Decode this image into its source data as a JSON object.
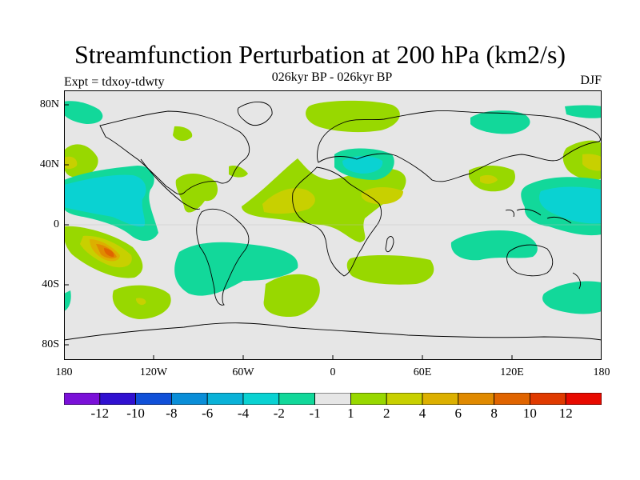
{
  "title": "Streamfunction Perturbation at 200 hPa (km2/s)",
  "subtitle": "026kyr BP - 026kyr BP",
  "experiment": "Expt = tdxoy-tdwty",
  "season": "DJF",
  "axes": {
    "y_labels": [
      "80N",
      "40N",
      "0",
      "40S",
      "80S"
    ],
    "x_labels": [
      "180",
      "120W",
      "60W",
      "0",
      "60E",
      "120E",
      "180"
    ]
  },
  "colorbar": {
    "colors": [
      "#7a10d8",
      "#3010d0",
      "#1050d8",
      "#0a8ed8",
      "#0ab2d8",
      "#0ad2d2",
      "#12d89a",
      "#e6e6e6",
      "#98d800",
      "#c8d000",
      "#dcb000",
      "#e08a00",
      "#e06400",
      "#e03a00",
      "#e80a00"
    ],
    "labels": [
      "-12",
      "-10",
      "-8",
      "-6",
      "-4",
      "-2",
      "-1",
      "1",
      "2",
      "4",
      "6",
      "8",
      "10",
      "12"
    ]
  },
  "colors": {
    "background": "#e6e6e6",
    "neg1": "#12d89a",
    "neg2": "#0ad2d2",
    "neg4": "#0ab2d8",
    "pos1": "#98d800",
    "pos2": "#c8d000",
    "pos4": "#dcb000",
    "pos6": "#e08a00",
    "pos8": "#e06400"
  }
}
